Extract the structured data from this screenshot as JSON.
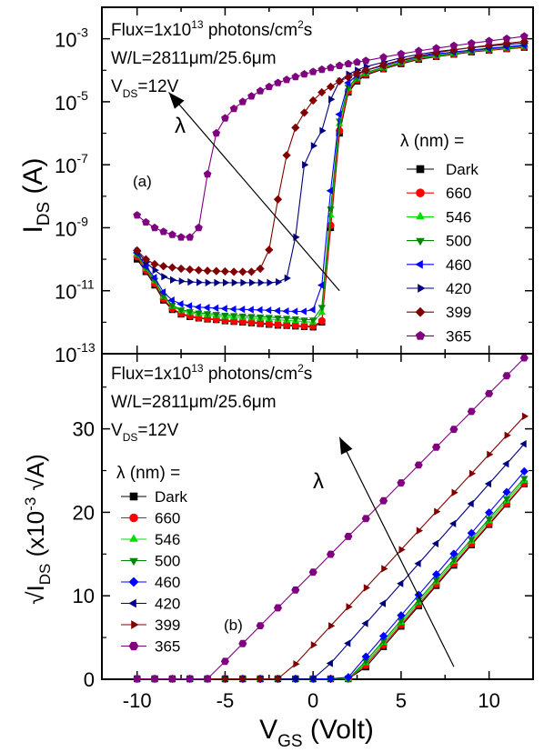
{
  "chart_data": [
    {
      "type": "scatter",
      "panel_label": "(a)",
      "y_scale": "log",
      "xlim": [
        -12,
        12.5
      ],
      "ylim": [
        1e-13,
        0.01
      ],
      "x_ticks": [
        -10,
        -5,
        0,
        5,
        10
      ],
      "y_ticks": [
        {
          "value": 1e-13,
          "label": "10",
          "exp": "-13"
        },
        {
          "value": 1e-11,
          "label": "10",
          "exp": "-11"
        },
        {
          "value": 1e-09,
          "label": "10",
          "exp": "-9"
        },
        {
          "value": 1e-07,
          "label": "10",
          "exp": "-7"
        },
        {
          "value": 1e-05,
          "label": "10",
          "exp": "-5"
        },
        {
          "value": 0.001,
          "label": "10",
          "exp": "-3"
        }
      ],
      "ylabel": {
        "main": "I",
        "sub": "DS",
        "unit": " (A)"
      },
      "annotations": {
        "flux": {
          "pre": "Flux=1x10",
          "sup": "13",
          "mid": " photons/cm",
          "sup2": "2",
          "post": "s"
        },
        "wl": "W/L=2811μm/25.6μm",
        "vds": {
          "main": "V",
          "sub": "DS",
          "post": "=12V"
        },
        "lambda": "λ",
        "legend_title": "λ (nm) ="
      },
      "arrow": {
        "from": [
          1.5,
          1e-11
        ],
        "to": [
          -8.2,
          2e-05
        ]
      },
      "legend_position": "right",
      "series": [
        {
          "name": "Dark",
          "color": "#000000",
          "marker": "square",
          "x": [
            -10,
            -9.5,
            -9,
            -8.5,
            -8,
            -7.5,
            -7,
            -6.5,
            -6,
            -5.5,
            -5,
            -4.5,
            -4,
            -3.5,
            -3,
            -2.5,
            -2,
            -1.5,
            -1,
            -0.5,
            0,
            0.5,
            1,
            1.5,
            2,
            2.5,
            3,
            4,
            5,
            6,
            7,
            8,
            9,
            10,
            11,
            12
          ],
          "y": [
            1e-10,
            4e-11,
            1.5e-11,
            5e-12,
            2.5e-12,
            1.8e-12,
            1.5e-12,
            1.35e-12,
            1.25e-12,
            1.2e-12,
            1.1e-12,
            1.05e-12,
            1e-12,
            9.5e-13,
            9e-13,
            8.5e-13,
            8e-13,
            7.8e-13,
            7.5e-13,
            7.2e-13,
            7e-13,
            1e-12,
            1e-09,
            1e-06,
            2e-05,
            4.5e-05,
            7e-05,
            0.00011,
            0.00016,
            0.00022,
            0.00027,
            0.00032,
            0.00038,
            0.00043,
            0.00048,
            0.00053
          ]
        },
        {
          "name": "660",
          "color": "#ff0000",
          "marker": "circle",
          "x": [
            -10,
            -9.5,
            -9,
            -8.5,
            -8,
            -7.5,
            -7,
            -6.5,
            -6,
            -5.5,
            -5,
            -4.5,
            -4,
            -3.5,
            -3,
            -2.5,
            -2,
            -1.5,
            -1,
            -0.5,
            0,
            0.5,
            1,
            1.5,
            2,
            2.5,
            3,
            4,
            5,
            6,
            7,
            8,
            9,
            10,
            11,
            12
          ],
          "y": [
            1.2e-10,
            4.5e-11,
            1.7e-11,
            5.5e-12,
            2.7e-12,
            1.9e-12,
            1.6e-12,
            1.4e-12,
            1.3e-12,
            1.25e-12,
            1.15e-12,
            1.1e-12,
            1.05e-12,
            1e-12,
            9.5e-13,
            9e-13,
            8.5e-13,
            8.2e-13,
            8e-13,
            7.6e-13,
            7.5e-13,
            1.1e-12,
            1.2e-09,
            1.2e-06,
            2.2e-05,
            5e-05,
            7.5e-05,
            0.000115,
            0.00017,
            0.00023,
            0.00028,
            0.00033,
            0.00039,
            0.00044,
            0.00049,
            0.00055
          ]
        },
        {
          "name": "546",
          "color": "#00dd00",
          "marker": "triangle-up",
          "x": [
            -10,
            -9.5,
            -9,
            -8.5,
            -8,
            -7.5,
            -7,
            -6.5,
            -6,
            -5.5,
            -5,
            -4.5,
            -4,
            -3.5,
            -3,
            -2.5,
            -2,
            -1.5,
            -1,
            -0.5,
            0,
            0.5,
            1,
            1.5,
            2,
            2.5,
            3,
            4,
            5,
            6,
            7,
            8,
            9,
            10,
            11,
            12
          ],
          "y": [
            1.4e-10,
            5e-11,
            2e-11,
            6.5e-12,
            3.2e-12,
            2.3e-12,
            2e-12,
            1.8e-12,
            1.7e-12,
            1.6e-12,
            1.5e-12,
            1.45e-12,
            1.4e-12,
            1.35e-12,
            1.3e-12,
            1.25e-12,
            1.2e-12,
            1.15e-12,
            1.1e-12,
            1.05e-12,
            1e-12,
            2e-12,
            2.5e-09,
            2e-06,
            2.6e-05,
            5.5e-05,
            8e-05,
            0.00012,
            0.000175,
            0.00024,
            0.00029,
            0.00034,
            0.0004,
            0.00046,
            0.00051,
            0.00057
          ]
        },
        {
          "name": "500",
          "color": "#008800",
          "marker": "triangle-down",
          "x": [
            -10,
            -9.5,
            -9,
            -8.5,
            -8,
            -7.5,
            -7,
            -6.5,
            -6,
            -5.5,
            -5,
            -4.5,
            -4,
            -3.5,
            -3,
            -2.5,
            -2,
            -1.5,
            -1,
            -0.5,
            0,
            0.5,
            1,
            1.5,
            2,
            2.5,
            3,
            4,
            5,
            6,
            7,
            8,
            9,
            10,
            11,
            12
          ],
          "y": [
            1.5e-10,
            5.5e-11,
            2.2e-11,
            7e-12,
            3.5e-12,
            2.5e-12,
            2.2e-12,
            2e-12,
            1.9e-12,
            1.8e-12,
            1.7e-12,
            1.65e-12,
            1.6e-12,
            1.55e-12,
            1.5e-12,
            1.45e-12,
            1.4e-12,
            1.35e-12,
            1.3e-12,
            1.2e-12,
            1.2e-12,
            3e-12,
            4e-09,
            2.5e-06,
            3e-05,
            6e-05,
            8.5e-05,
            0.000125,
            0.00018,
            0.00025,
            0.0003,
            0.00035,
            0.00041,
            0.00047,
            0.00053,
            0.00059
          ]
        },
        {
          "name": "460",
          "color": "#0000ff",
          "marker": "triangle-left",
          "x": [
            -10,
            -9.5,
            -9,
            -8.5,
            -8,
            -7.5,
            -7,
            -6.5,
            -6,
            -5.5,
            -5,
            -4.5,
            -4,
            -3.5,
            -3,
            -2.5,
            -2,
            -1.5,
            -1,
            -0.5,
            0,
            0.5,
            1,
            1.5,
            2,
            2.5,
            3,
            4,
            5,
            6,
            7,
            8,
            9,
            10,
            11,
            12
          ],
          "y": [
            1.6e-10,
            6e-11,
            2.6e-11,
            9e-12,
            5e-12,
            3.8e-12,
            3.3e-12,
            3e-12,
            2.9e-12,
            2.8e-12,
            2.7e-12,
            2.6e-12,
            2.55e-12,
            2.5e-12,
            2.45e-12,
            2.4e-12,
            2.3e-12,
            2.25e-12,
            2.2e-12,
            2.2e-12,
            2.5e-12,
            1.5e-11,
            1.5e-08,
            4e-06,
            4e-05,
            7e-05,
            0.0001,
            0.00014,
            0.0002,
            0.00027,
            0.00033,
            0.00038,
            0.00044,
            0.0005,
            0.00056,
            0.00063
          ]
        },
        {
          "name": "420",
          "color": "#000080",
          "marker": "triangle-right",
          "x": [
            -10,
            -9.5,
            -9,
            -8.5,
            -8,
            -7.5,
            -7,
            -6.5,
            -6,
            -5.5,
            -5,
            -4.5,
            -4,
            -3.5,
            -3,
            -2.5,
            -2,
            -1.5,
            -1,
            -0.5,
            0,
            0.5,
            1,
            1.5,
            2,
            2.5,
            3,
            4,
            5,
            6,
            7,
            8,
            9,
            10,
            11,
            12
          ],
          "y": [
            1.8e-10,
            8e-11,
            4.5e-11,
            2.8e-11,
            2.2e-11,
            2e-11,
            1.9e-11,
            1.85e-11,
            1.8e-11,
            1.8e-11,
            1.8e-11,
            1.8e-11,
            1.8e-11,
            1.8e-11,
            1.8e-11,
            1.8e-11,
            1.9e-11,
            2.5e-11,
            5e-10,
            1e-07,
            4e-07,
            1.2e-06,
            1.2e-05,
            4.5e-05,
            7.5e-05,
            0.0001,
            0.00013,
            0.00018,
            0.00025,
            0.00032,
            0.00039,
            0.00045,
            0.00052,
            0.00059,
            0.00066,
            0.00074
          ]
        },
        {
          "name": "399",
          "color": "#800000",
          "marker": "diamond",
          "x": [
            -10,
            -9.5,
            -9,
            -8.5,
            -8,
            -7.5,
            -7,
            -6.5,
            -6,
            -5.5,
            -5,
            -4.5,
            -4,
            -3.5,
            -3,
            -2.5,
            -2,
            -1.5,
            -1,
            -0.5,
            0,
            0.5,
            1,
            1.5,
            2,
            2.5,
            3,
            4,
            5,
            6,
            7,
            8,
            9,
            10,
            11,
            12
          ],
          "y": [
            1.9e-10,
            1e-10,
            7e-11,
            6e-11,
            5.5e-11,
            5e-11,
            4.7e-11,
            4.5e-11,
            4.3e-11,
            4.2e-11,
            4.1e-11,
            4e-11,
            4e-11,
            4e-11,
            5e-11,
            2e-10,
            8e-09,
            2e-07,
            1.5e-06,
            4.5e-06,
            1.1e-05,
            2e-05,
            3e-05,
            4.5e-05,
            6e-05,
            8e-05,
            0.0001,
            0.00015,
            0.00021,
            0.00028,
            0.00036,
            0.00044,
            0.00053,
            0.00062,
            0.00072,
            0.00082
          ]
        },
        {
          "name": "365",
          "color": "#800080",
          "marker": "pentagon",
          "x": [
            -10,
            -9.5,
            -9,
            -8.5,
            -8,
            -7.5,
            -7,
            -6.5,
            -6,
            -5.5,
            -5,
            -4.5,
            -4,
            -3.5,
            -3,
            -2.5,
            -2,
            -1.5,
            -1,
            -0.5,
            0,
            0.5,
            1,
            1.5,
            2,
            2.5,
            3,
            4,
            5,
            6,
            7,
            8,
            9,
            10,
            11,
            12
          ],
          "y": [
            2.5e-09,
            1.5e-09,
            1e-09,
            7.5e-10,
            6e-10,
            5e-10,
            5e-10,
            1e-09,
            5e-08,
            1e-06,
            3e-06,
            6e-06,
            1e-05,
            1.5e-05,
            2.2e-05,
            3e-05,
            4e-05,
            5e-05,
            6.2e-05,
            7.5e-05,
            9e-05,
            0.000105,
            0.00012,
            0.00014,
            0.00016,
            0.00018,
            0.0002,
            0.00026,
            0.00033,
            0.00041,
            0.0005,
            0.0006,
            0.00072,
            0.00085,
            0.001,
            0.0012
          ]
        }
      ]
    },
    {
      "type": "scatter",
      "panel_label": "(b)",
      "y_scale": "linear",
      "xlim": [
        -12,
        12.5
      ],
      "ylim": [
        0,
        39
      ],
      "x_ticks": [
        -10,
        -5,
        0,
        5,
        10
      ],
      "y_ticks": [
        0,
        10,
        20,
        30
      ],
      "xlabel": {
        "main": "V",
        "sub": "GS",
        "unit": " (Volt)"
      },
      "ylabel": {
        "main": "√I",
        "sub": "DS",
        "unit": " (x10",
        "sup": "-3",
        "post": " √A)"
      },
      "annotations": {
        "flux": {
          "pre": "Flux=1x10",
          "sup": "13",
          "mid": " photons/cm",
          "sup2": "2",
          "post": "s"
        },
        "wl": "W/L=2811μm/25.6μm",
        "vds": {
          "main": "V",
          "sub": "DS",
          "post": "=12V"
        },
        "lambda": "λ",
        "legend_title": "λ (nm) ="
      },
      "arrow": {
        "from": [
          8,
          1.5
        ],
        "to": [
          1.5,
          29
        ]
      },
      "legend_position": "left",
      "series": [
        {
          "name": "Dark",
          "color": "#000000",
          "marker": "square",
          "x0": 2.4,
          "x12": 23.4
        },
        {
          "name": "660",
          "color": "#ff0000",
          "marker": "circle",
          "x0": 2.3,
          "x12": 23.5
        },
        {
          "name": "546",
          "color": "#00dd00",
          "marker": "triangle-up",
          "x0": 2.2,
          "x12": 23.8
        },
        {
          "name": "500",
          "color": "#008800",
          "marker": "triangle-down",
          "x0": 2.1,
          "x12": 24.1
        },
        {
          "name": "460",
          "color": "#0000ff",
          "marker": "diamond",
          "x0": 1.9,
          "x12": 24.9
        },
        {
          "name": "420",
          "color": "#000080",
          "marker": "triangle-left",
          "x0": 0.2,
          "x12": 28.2
        },
        {
          "name": "399",
          "color": "#800000",
          "marker": "triangle-right",
          "x0": -1.8,
          "x12": 31.5
        },
        {
          "name": "365",
          "color": "#800080",
          "marker": "hexagon",
          "x0": -6.0,
          "x12": 38.5
        }
      ]
    }
  ]
}
